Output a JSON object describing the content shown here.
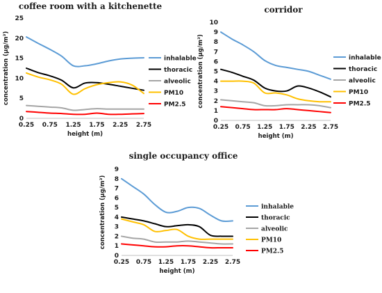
{
  "chart_data": [
    {
      "type": "line",
      "title": "coffee room with a kitchenette",
      "xlabel": "height (m)",
      "ylabel": "concentration (µg/m³)",
      "x": [
        0.25,
        0.5,
        0.75,
        1.0,
        1.25,
        1.5,
        1.75,
        2.0,
        2.25,
        2.5,
        2.75
      ],
      "xticks": [
        "0.25",
        "0.75",
        "1.25",
        "1.75",
        "2.25",
        "2.75"
      ],
      "xlim": [
        0.25,
        2.75
      ],
      "ylim": [
        0,
        25
      ],
      "yticks": [
        0,
        5,
        10,
        15,
        20,
        25
      ],
      "legend_position": "right",
      "series": [
        {
          "name": "inhalable",
          "color": "#5b9bd5",
          "values": [
            20.3,
            18.7,
            17.2,
            15.5,
            13.1,
            13.1,
            13.6,
            14.3,
            14.8,
            15.0,
            15.1
          ]
        },
        {
          "name": "thoracic",
          "color": "#000000",
          "values": [
            12.5,
            11.4,
            10.6,
            9.5,
            7.6,
            8.8,
            8.9,
            8.5,
            8.0,
            7.5,
            7.0
          ]
        },
        {
          "name": "alveolic",
          "color": "#a5a5a5",
          "values": [
            3.2,
            3.0,
            2.8,
            2.6,
            2.0,
            2.2,
            2.4,
            2.3,
            2.3,
            2.3,
            2.3
          ]
        },
        {
          "name": "PM10",
          "color": "#ffc000",
          "values": [
            11.3,
            10.3,
            9.6,
            8.5,
            6.0,
            7.4,
            8.4,
            8.9,
            9.1,
            8.3,
            6.2
          ]
        },
        {
          "name": "PM2.5",
          "color": "#ff0000",
          "values": [
            1.7,
            1.5,
            1.3,
            1.2,
            1.0,
            1.0,
            1.3,
            1.0,
            1.0,
            1.1,
            1.2
          ]
        }
      ]
    },
    {
      "type": "line",
      "title": "corridor",
      "xlabel": "height (m)",
      "ylabel": "concentration (µg/m³)",
      "x": [
        0.25,
        0.5,
        0.75,
        1.0,
        1.25,
        1.5,
        1.75,
        2.0,
        2.25,
        2.5,
        2.75
      ],
      "xticks": [
        "0.25",
        "0.75",
        "1.25",
        "1.75",
        "2.25",
        "2.75"
      ],
      "xlim": [
        0.25,
        2.75
      ],
      "ylim": [
        0,
        10
      ],
      "yticks": [
        0,
        1,
        2,
        3,
        4,
        5,
        6,
        7,
        8,
        9,
        10
      ],
      "legend_position": "right",
      "series": [
        {
          "name": "inhalable",
          "color": "#5b9bd5",
          "values": [
            9.0,
            8.3,
            7.7,
            7.0,
            6.1,
            5.6,
            5.4,
            5.2,
            5.0,
            4.6,
            4.2
          ]
        },
        {
          "name": "thoracic",
          "color": "#000000",
          "values": [
            5.2,
            4.9,
            4.5,
            4.1,
            3.3,
            3.0,
            3.0,
            3.5,
            3.3,
            2.9,
            2.4
          ]
        },
        {
          "name": "alveolic",
          "color": "#a5a5a5",
          "values": [
            2.1,
            2.0,
            1.9,
            1.8,
            1.5,
            1.5,
            1.6,
            1.6,
            1.6,
            1.5,
            1.3
          ]
        },
        {
          "name": "PM10",
          "color": "#ffc000",
          "values": [
            4.0,
            4.0,
            4.0,
            3.8,
            2.8,
            2.8,
            2.6,
            2.2,
            2.0,
            1.9,
            1.9
          ]
        },
        {
          "name": "PM2.5",
          "color": "#ff0000",
          "values": [
            1.4,
            1.3,
            1.2,
            1.1,
            1.1,
            1.1,
            1.2,
            1.1,
            1.0,
            0.9,
            0.8
          ]
        }
      ]
    },
    {
      "type": "line",
      "title": "single occupancy office",
      "xlabel": "height (m)",
      "ylabel": "concentration (µg/m³)",
      "x": [
        0.25,
        0.5,
        0.75,
        1.0,
        1.25,
        1.5,
        1.75,
        2.0,
        2.25,
        2.5,
        2.75
      ],
      "xticks": [
        "0.25",
        "0.75",
        "1.25",
        "1.75",
        "2.25",
        "2.75"
      ],
      "xlim": [
        0.25,
        2.75
      ],
      "ylim": [
        0,
        9
      ],
      "yticks": [
        0,
        1,
        2,
        3,
        4,
        5,
        6,
        7,
        8,
        9
      ],
      "legend_position": "right",
      "series": [
        {
          "name": "inhalable",
          "color": "#5b9bd5",
          "values": [
            8.0,
            7.2,
            6.4,
            5.3,
            4.5,
            4.6,
            5.0,
            4.9,
            4.2,
            3.6,
            3.6
          ]
        },
        {
          "name": "thoracic",
          "color": "#000000",
          "values": [
            4.0,
            3.8,
            3.6,
            3.3,
            3.0,
            3.1,
            3.2,
            3.0,
            2.1,
            2.0,
            2.0
          ]
        },
        {
          "name": "alveolic",
          "color": "#a5a5a5",
          "values": [
            2.0,
            1.8,
            1.7,
            1.4,
            1.4,
            1.4,
            1.5,
            1.4,
            1.3,
            1.2,
            1.2
          ]
        },
        {
          "name": "PM10",
          "color": "#ffc000",
          "values": [
            3.8,
            3.5,
            3.2,
            2.5,
            2.6,
            2.7,
            2.0,
            1.7,
            1.7,
            1.7,
            1.7
          ]
        },
        {
          "name": "PM2.5",
          "color": "#ff0000",
          "values": [
            1.2,
            1.1,
            1.0,
            0.9,
            0.9,
            1.0,
            1.0,
            0.9,
            0.8,
            0.8,
            0.8
          ]
        }
      ]
    }
  ]
}
